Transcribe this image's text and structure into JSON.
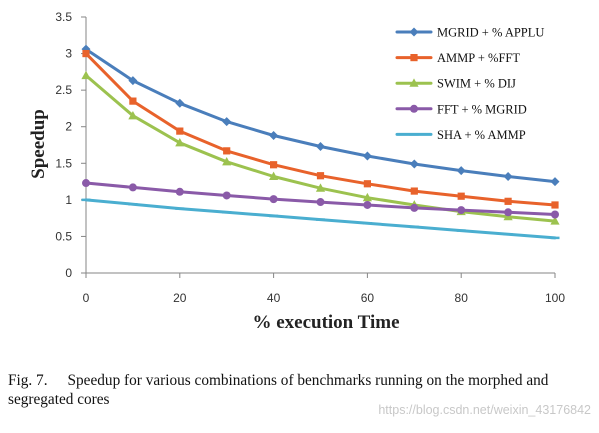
{
  "chart_data": {
    "type": "line",
    "xlabel": "% execution Time",
    "ylabel": "Speedup",
    "x": [
      0,
      10,
      20,
      30,
      40,
      50,
      60,
      70,
      80,
      90,
      100
    ],
    "xlim": [
      0,
      100
    ],
    "ylim": [
      0,
      3.5
    ],
    "xticks": [
      "0",
      "20",
      "40",
      "60",
      "80",
      "100"
    ],
    "yticks": [
      "0",
      "0.5",
      "1",
      "1.5",
      "2",
      "2.5",
      "3",
      "3.5"
    ],
    "grid": false,
    "legend_position": "top-right",
    "series": [
      {
        "name": "MGRID + % APPLU",
        "color": "#4a7ebb",
        "marker": "diamond",
        "values": [
          3.06,
          2.63,
          2.32,
          2.07,
          1.88,
          1.73,
          1.6,
          1.49,
          1.4,
          1.32,
          1.25
        ]
      },
      {
        "name": "AMMP + %FFT",
        "color": "#e8622b",
        "marker": "square",
        "values": [
          3.0,
          2.35,
          1.94,
          1.67,
          1.48,
          1.33,
          1.22,
          1.12,
          1.05,
          0.98,
          0.93
        ]
      },
      {
        "name": "SWIM + % DIJ",
        "color": "#9cc24f",
        "marker": "triangle",
        "values": [
          2.7,
          2.15,
          1.78,
          1.52,
          1.32,
          1.16,
          1.03,
          0.93,
          0.84,
          0.77,
          0.71
        ]
      },
      {
        "name": "FFT + % MGRID",
        "color": "#8a5aa8",
        "marker": "circle",
        "values": [
          1.23,
          1.17,
          1.11,
          1.06,
          1.01,
          0.97,
          0.93,
          0.89,
          0.86,
          0.83,
          0.8
        ]
      },
      {
        "name": "SHA + % AMMP",
        "color": "#4aaed0",
        "marker": "dash",
        "values": [
          1.0,
          0.94,
          0.88,
          0.83,
          0.78,
          0.73,
          0.68,
          0.63,
          0.58,
          0.53,
          0.48
        ]
      }
    ]
  },
  "caption": {
    "label": "Fig. 7.",
    "text": "Speedup for various combinations of benchmarks running on the morphed and segregated cores"
  },
  "watermark": "https://blog.csdn.net/weixin_43176842"
}
